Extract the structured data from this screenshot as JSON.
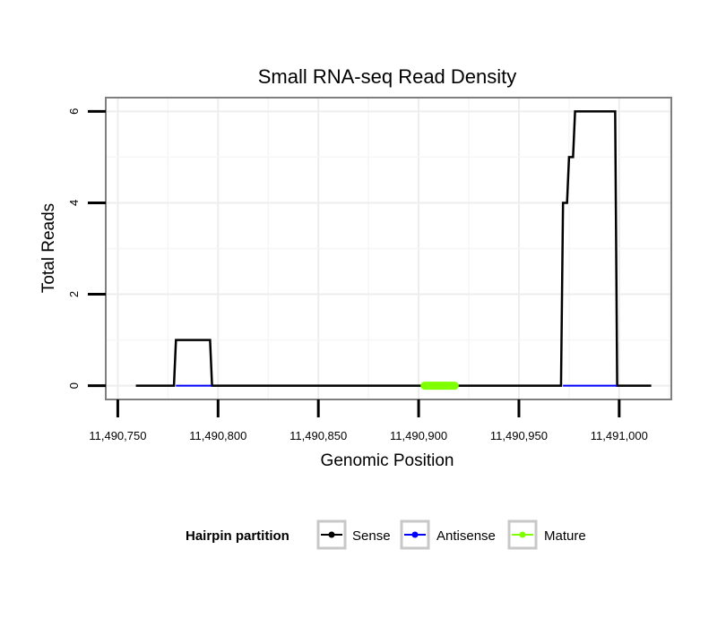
{
  "chart_data": {
    "type": "line",
    "title": "Small RNA-seq Read Density",
    "xlabel": "Genomic Position",
    "ylabel": "Total Reads",
    "xlim": [
      11490744,
      11491026
    ],
    "ylim": [
      -0.3,
      6.3
    ],
    "x_ticks": [
      11490750,
      11490800,
      11490850,
      11490900,
      11490950,
      11491000
    ],
    "x_tick_labels": [
      "11,490,750",
      "11,490,800",
      "11,490,850",
      "11,490,900",
      "11,490,950",
      "11,491,000"
    ],
    "y_ticks": [
      0,
      2,
      4,
      6
    ],
    "y_tick_labels": [
      "0",
      "2",
      "4",
      "6"
    ],
    "grid": true,
    "legend": {
      "title": "Hairpin partition",
      "position": "bottom",
      "entries": [
        "Sense",
        "Antisense",
        "Mature"
      ]
    },
    "series": [
      {
        "name": "Sense",
        "color": "#000000",
        "x": [
          11490759,
          11490778,
          11490779,
          11490796,
          11490797,
          11490971,
          11490972,
          11490974,
          11490975,
          11490977,
          11490978,
          11490998,
          11490999,
          11491016
        ],
        "y": [
          0,
          0,
          1,
          1,
          0,
          0,
          4,
          4,
          5,
          5,
          6,
          6,
          0,
          0
        ]
      },
      {
        "name": "Antisense",
        "color": "#0000ff",
        "x": [
          11490779,
          11490797,
          11490972,
          11490999
        ],
        "y": [
          0,
          0,
          0,
          0
        ],
        "segments": [
          [
            0,
            1
          ],
          [
            2,
            3
          ]
        ]
      },
      {
        "name": "Mature",
        "color": "#7fff00",
        "x": [
          11490903,
          11490918
        ],
        "y": [
          0,
          0
        ]
      }
    ]
  }
}
